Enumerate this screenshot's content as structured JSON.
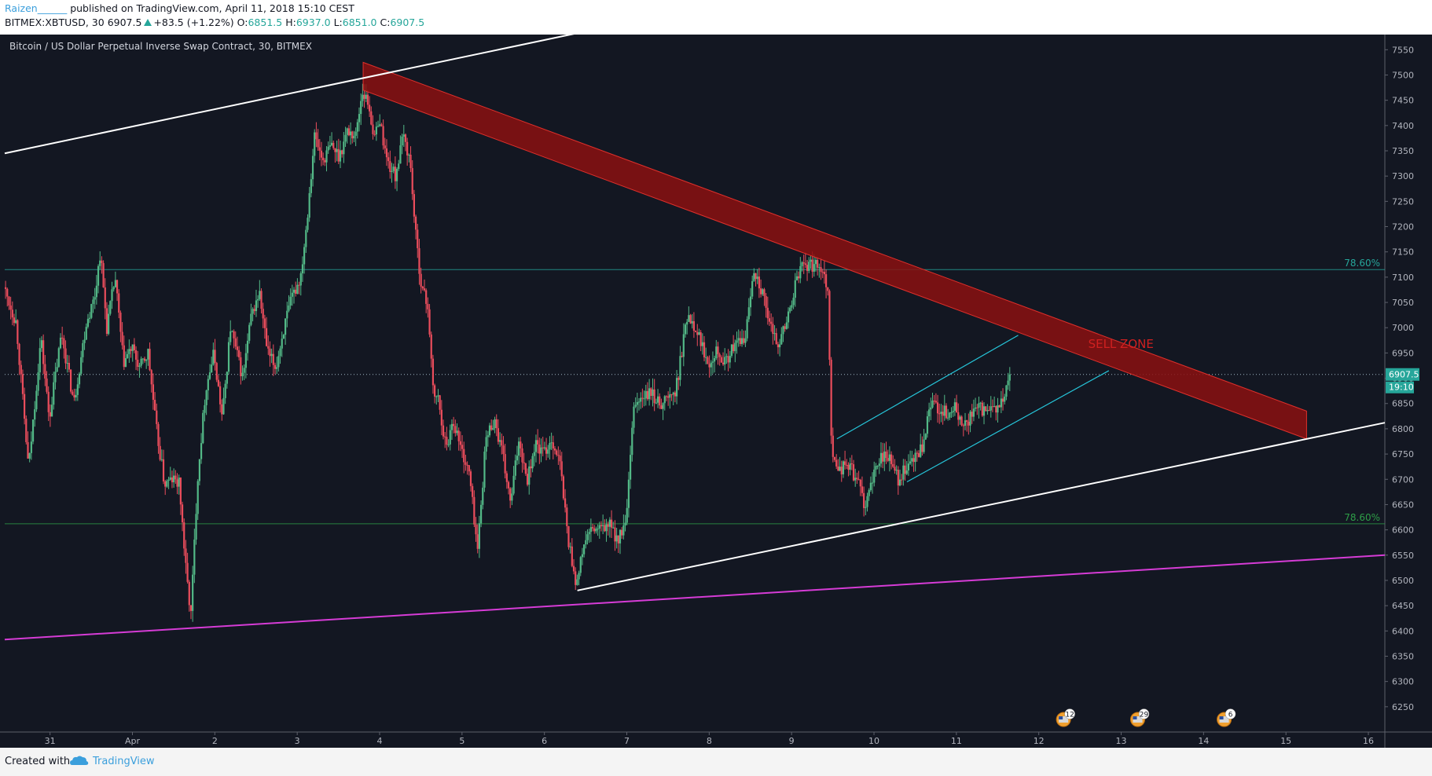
{
  "header": {
    "author": "Raizen______",
    "published": " published on TradingView.com, April 11, 2018 15:10 CEST",
    "symbol": "BITMEX:XBTUSD, 30",
    "last": "6907.5",
    "change": "+83.5 (+1.22%)",
    "o_label": "O:",
    "o": "6851.5",
    "h_label": "H:",
    "h": "6937.0",
    "l_label": "L:",
    "l": "6851.0",
    "c_label": "C:",
    "c": "6907.5"
  },
  "footer": {
    "created_with": "Created with",
    "brand": "TradingView"
  },
  "chart_data": {
    "type": "candlestick",
    "title": "Bitcoin / US Dollar Perpetual Inverse Swap Contract, 30, BITMEX",
    "interval": "30",
    "x_ticks": [
      {
        "label": "31",
        "day": 0
      },
      {
        "label": "Apr",
        "day": 1
      },
      {
        "label": "2",
        "day": 2
      },
      {
        "label": "3",
        "day": 3
      },
      {
        "label": "4",
        "day": 4
      },
      {
        "label": "5",
        "day": 5
      },
      {
        "label": "6",
        "day": 6
      },
      {
        "label": "7",
        "day": 7
      },
      {
        "label": "8",
        "day": 8
      },
      {
        "label": "9",
        "day": 9
      },
      {
        "label": "10",
        "day": 10
      },
      {
        "label": "11",
        "day": 11
      },
      {
        "label": "12",
        "day": 12
      },
      {
        "label": "13",
        "day": 13
      },
      {
        "label": "14",
        "day": 14
      },
      {
        "label": "15",
        "day": 15
      },
      {
        "label": "16",
        "day": 16
      }
    ],
    "y_ticks": [
      6250,
      6300,
      6350,
      6400,
      6450,
      6500,
      6550,
      6600,
      6650,
      6700,
      6750,
      6800,
      6850,
      6900,
      6950,
      7000,
      7050,
      7100,
      7150,
      7200,
      7250,
      7300,
      7350,
      7400,
      7450,
      7500,
      7550
    ],
    "ylim": [
      6200,
      7580
    ],
    "xlim": [
      -0.55,
      16.2
    ],
    "grid": false,
    "price_path": [
      [
        -0.55,
        7080
      ],
      [
        -0.4,
        7010
      ],
      [
        -0.25,
        6720
      ],
      [
        -0.1,
        6980
      ],
      [
        0.0,
        6820
      ],
      [
        0.15,
        6990
      ],
      [
        0.3,
        6850
      ],
      [
        0.45,
        7010
      ],
      [
        0.55,
        7060
      ],
      [
        0.62,
        7150
      ],
      [
        0.7,
        7000
      ],
      [
        0.8,
        7100
      ],
      [
        0.9,
        6930
      ],
      [
        1.0,
        6960
      ],
      [
        1.1,
        6920
      ],
      [
        1.2,
        6950
      ],
      [
        1.3,
        6800
      ],
      [
        1.4,
        6690
      ],
      [
        1.5,
        6700
      ],
      [
        1.58,
        6690
      ],
      [
        1.66,
        6520
      ],
      [
        1.72,
        6430
      ],
      [
        1.8,
        6700
      ],
      [
        1.9,
        6880
      ],
      [
        2.0,
        6950
      ],
      [
        2.1,
        6820
      ],
      [
        2.2,
        7000
      ],
      [
        2.35,
        6900
      ],
      [
        2.45,
        7020
      ],
      [
        2.55,
        7070
      ],
      [
        2.65,
        6950
      ],
      [
        2.75,
        6920
      ],
      [
        2.85,
        7000
      ],
      [
        2.95,
        7060
      ],
      [
        3.05,
        7100
      ],
      [
        3.12,
        7200
      ],
      [
        3.22,
        7380
      ],
      [
        3.32,
        7330
      ],
      [
        3.42,
        7360
      ],
      [
        3.52,
        7340
      ],
      [
        3.62,
        7390
      ],
      [
        3.72,
        7380
      ],
      [
        3.8,
        7470
      ],
      [
        3.88,
        7440
      ],
      [
        3.95,
        7370
      ],
      [
        4.0,
        7420
      ],
      [
        4.1,
        7330
      ],
      [
        4.2,
        7300
      ],
      [
        4.3,
        7380
      ],
      [
        4.38,
        7330
      ],
      [
        4.45,
        7180
      ],
      [
        4.52,
        7080
      ],
      [
        4.6,
        7040
      ],
      [
        4.66,
        6870
      ],
      [
        4.72,
        6860
      ],
      [
        4.82,
        6760
      ],
      [
        4.9,
        6820
      ],
      [
        5.0,
        6760
      ],
      [
        5.1,
        6710
      ],
      [
        5.2,
        6560
      ],
      [
        5.3,
        6780
      ],
      [
        5.4,
        6820
      ],
      [
        5.5,
        6750
      ],
      [
        5.6,
        6650
      ],
      [
        5.7,
        6780
      ],
      [
        5.8,
        6700
      ],
      [
        5.9,
        6770
      ],
      [
        6.0,
        6750
      ],
      [
        6.1,
        6780
      ],
      [
        6.2,
        6730
      ],
      [
        6.3,
        6580
      ],
      [
        6.4,
        6490
      ],
      [
        6.5,
        6580
      ],
      [
        6.6,
        6600
      ],
      [
        6.7,
        6600
      ],
      [
        6.8,
        6610
      ],
      [
        6.9,
        6580
      ],
      [
        7.0,
        6610
      ],
      [
        7.1,
        6850
      ],
      [
        7.2,
        6860
      ],
      [
        7.3,
        6870
      ],
      [
        7.4,
        6850
      ],
      [
        7.5,
        6860
      ],
      [
        7.6,
        6870
      ],
      [
        7.75,
        7030
      ],
      [
        7.85,
        7000
      ],
      [
        8.0,
        6930
      ],
      [
        8.1,
        6960
      ],
      [
        8.2,
        6930
      ],
      [
        8.3,
        6960
      ],
      [
        8.45,
        6980
      ],
      [
        8.55,
        7120
      ],
      [
        8.65,
        7070
      ],
      [
        8.75,
        7000
      ],
      [
        8.85,
        6970
      ],
      [
        8.95,
        7010
      ],
      [
        9.05,
        7080
      ],
      [
        9.15,
        7130
      ],
      [
        9.25,
        7120
      ],
      [
        9.35,
        7130
      ],
      [
        9.45,
        7080
      ],
      [
        9.5,
        6740
      ],
      [
        9.6,
        6720
      ],
      [
        9.7,
        6730
      ],
      [
        9.8,
        6700
      ],
      [
        9.9,
        6650
      ],
      [
        10.0,
        6700
      ],
      [
        10.1,
        6750
      ],
      [
        10.2,
        6740
      ],
      [
        10.3,
        6700
      ],
      [
        10.4,
        6720
      ],
      [
        10.5,
        6740
      ],
      [
        10.6,
        6760
      ],
      [
        10.7,
        6850
      ],
      [
        10.8,
        6840
      ],
      [
        10.9,
        6830
      ],
      [
        11.0,
        6840
      ],
      [
        11.1,
        6800
      ],
      [
        11.2,
        6830
      ],
      [
        11.3,
        6840
      ],
      [
        11.4,
        6830
      ],
      [
        11.5,
        6840
      ],
      [
        11.6,
        6860
      ],
      [
        11.65,
        6907.5
      ]
    ],
    "price_lines": [
      {
        "label": "78.60%",
        "value": 7115,
        "color": "#26a69a"
      },
      {
        "label": "78.60%",
        "value": 6612,
        "color": "#2e9e48"
      }
    ],
    "current_price": {
      "label": "6907.5",
      "value": 6907.5,
      "countdown": "19:10",
      "color": "#26a69a"
    },
    "trendlines": [
      {
        "from": [
          -0.55,
          7345
        ],
        "to": [
          6.55,
          7588
        ],
        "color": "#ffffff"
      },
      {
        "from": [
          6.4,
          6480
        ],
        "to": [
          16.2,
          6812
        ],
        "color": "#ffffff"
      },
      {
        "from": [
          -0.55,
          6383
        ],
        "to": [
          16.2,
          6550
        ],
        "color": "#d63cd6"
      },
      {
        "from": [
          9.55,
          6780
        ],
        "to": [
          11.75,
          6985
        ],
        "color": "#26c6da"
      },
      {
        "from": [
          10.4,
          6695
        ],
        "to": [
          12.85,
          6915
        ],
        "color": "#26c6da"
      }
    ],
    "bands": [
      {
        "upper_from": [
          3.8,
          7525
        ],
        "upper_to": [
          15.25,
          6835
        ],
        "lower_from": [
          3.8,
          7470
        ],
        "lower_to": [
          15.25,
          6780
        ],
        "color": "#8b1111"
      }
    ],
    "annotations": [
      {
        "text": "SELL ZONE",
        "x": 12.6,
        "y": 6960,
        "color": "#d02020"
      }
    ],
    "events": [
      {
        "x": 12.3,
        "count": "12"
      },
      {
        "x": 13.2,
        "count": "29"
      },
      {
        "x": 14.25,
        "count": "6"
      }
    ]
  }
}
